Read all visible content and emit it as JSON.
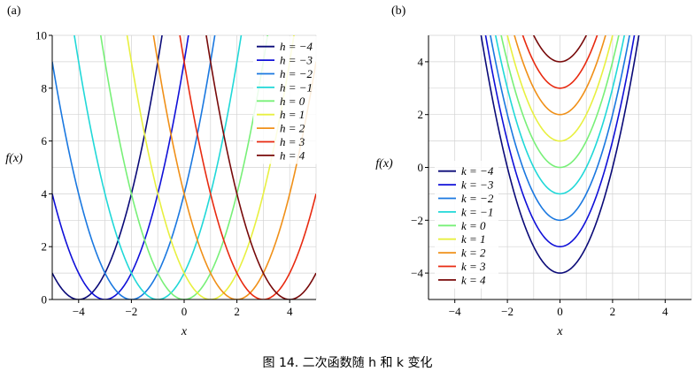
{
  "caption": "图 14. 二次函数随 h 和 k 变化",
  "chart_data": [
    {
      "panel_label": "(a)",
      "type": "line",
      "function": "f(x) = (x - h)^2",
      "xlabel": "x",
      "ylabel": "f(x)",
      "xlim": [
        -5,
        5
      ],
      "ylim": [
        0,
        10
      ],
      "xticks": [
        -4,
        -2,
        0,
        2,
        4
      ],
      "yticks": [
        0,
        2,
        4,
        6,
        8,
        10
      ],
      "xtick_labels": [
        "−4",
        "−2",
        "0",
        "2",
        "4"
      ],
      "ytick_labels": [
        "0",
        "2",
        "4",
        "6",
        "8",
        "10"
      ],
      "grid": true,
      "legend_position": "top-right",
      "series": [
        {
          "name": "h = −4",
          "h": -4,
          "color": "#0a0a78"
        },
        {
          "name": "h = −3",
          "h": -3,
          "color": "#1010d8"
        },
        {
          "name": "h = −2",
          "h": -2,
          "color": "#1a78e0"
        },
        {
          "name": "h = −1",
          "h": -1,
          "color": "#20d8d8"
        },
        {
          "name": "h = 0",
          "h": 0,
          "color": "#78f078"
        },
        {
          "name": "h = 1",
          "h": 1,
          "color": "#e8f040"
        },
        {
          "name": "h = 2",
          "h": 2,
          "color": "#f09018"
        },
        {
          "name": "h = 3",
          "h": 3,
          "color": "#e82a10"
        },
        {
          "name": "h = 4",
          "h": 4,
          "color": "#780a0a"
        }
      ]
    },
    {
      "panel_label": "(b)",
      "type": "line",
      "function": "f(x) = x^2 + k",
      "xlabel": "x",
      "ylabel": "f(x)",
      "xlim": [
        -5,
        5
      ],
      "ylim": [
        -5,
        5
      ],
      "xticks": [
        -4,
        -2,
        0,
        2,
        4
      ],
      "yticks": [
        -4,
        -2,
        0,
        2,
        4
      ],
      "xtick_labels": [
        "−4",
        "−2",
        "0",
        "2",
        "4"
      ],
      "ytick_labels": [
        "−4",
        "−2",
        "0",
        "2",
        "4"
      ],
      "grid": true,
      "legend_position": "bottom-left",
      "series": [
        {
          "name": "k = −4",
          "k": -4,
          "color": "#0a0a78"
        },
        {
          "name": "k = −3",
          "k": -3,
          "color": "#1010d8"
        },
        {
          "name": "k = −2",
          "k": -2,
          "color": "#1a78e0"
        },
        {
          "name": "k = −1",
          "k": -1,
          "color": "#20d8d8"
        },
        {
          "name": "k = 0",
          "k": 0,
          "color": "#78f078"
        },
        {
          "name": "k = 1",
          "k": 1,
          "color": "#e8f040"
        },
        {
          "name": "k = 2",
          "k": 2,
          "color": "#f09018"
        },
        {
          "name": "k = 3",
          "k": 3,
          "color": "#e82a10"
        },
        {
          "name": "k = 4",
          "k": 4,
          "color": "#780a0a"
        }
      ]
    }
  ]
}
